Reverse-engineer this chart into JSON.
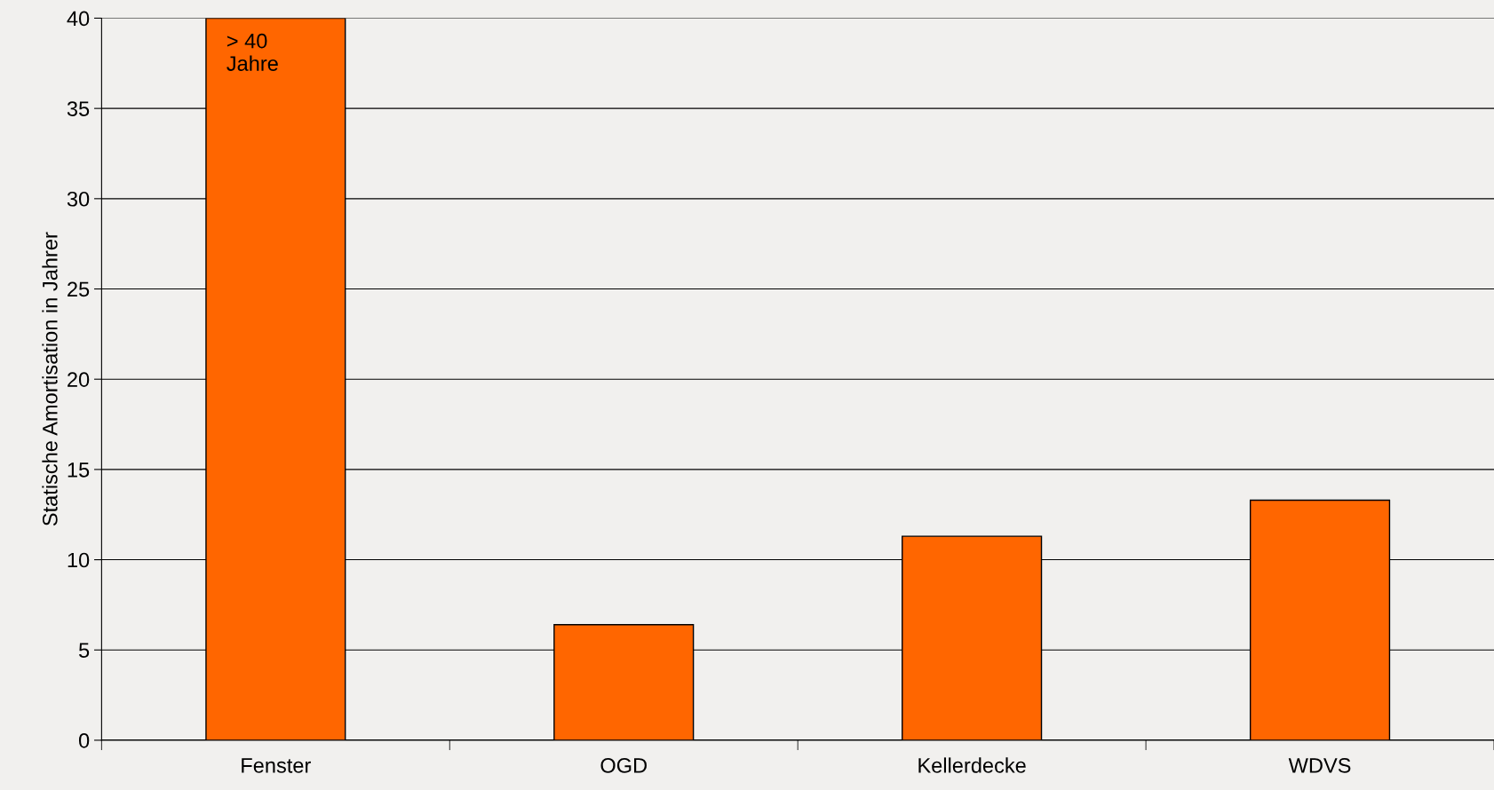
{
  "chart_data": {
    "type": "bar",
    "ylabel": "Statische Amortisation in Jahrer",
    "categories": [
      "Fenster",
      "OGD",
      "Kellerdecke",
      "WDVS"
    ],
    "values": [
      40,
      6.4,
      11.3,
      13.3
    ],
    "color": "#ff6600",
    "ylim": [
      0,
      40
    ],
    "yticks": [
      0,
      5,
      10,
      15,
      20,
      25,
      30,
      35,
      40
    ],
    "grid": "y",
    "annotations": [
      {
        "text": "> 40\nJahre",
        "x": "Fenster",
        "y": 40
      }
    ]
  }
}
